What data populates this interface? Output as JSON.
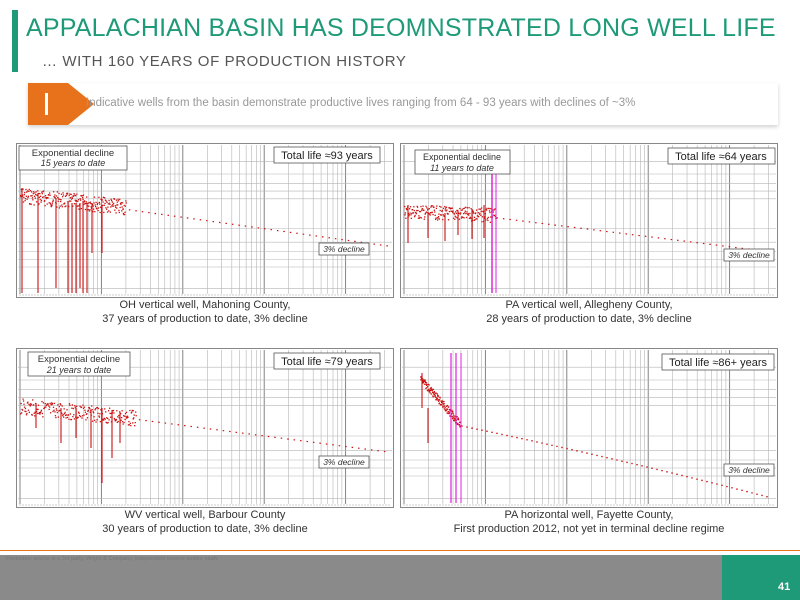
{
  "header": {
    "title": "APPALACHIAN BASIN HAS DEOMNSTRATED LONG WELL LIFE",
    "subtitle": "… WITH 160 YEARS OF PRODUCTION HISTORY"
  },
  "callout": {
    "text": "Indicative wells from the basin demonstrate productive lives ranging from 64 - 93 years with declines of ~3%"
  },
  "colors": {
    "accent_green": "#1e9a78",
    "accent_orange": "#e8711c",
    "data_red": "#cc1111",
    "marker_magenta": "#e020e0"
  },
  "chart_data": [
    {
      "type": "scatter",
      "panel": "oh",
      "exp_box": {
        "line1": "Exponential decline",
        "line2": "15 years to date"
      },
      "life_label": "Total life ≈93 years",
      "decline_label": "3% decline",
      "caption": {
        "line1": "OH vertical well, Mahoning County,",
        "line2": "37 years of production to date, 3% decline"
      }
    },
    {
      "type": "scatter",
      "panel": "pa1",
      "exp_box": {
        "line1": "Exponential decline",
        "line2": "11 years to date"
      },
      "life_label": "Total life ≈64 years",
      "decline_label": "3% decline",
      "caption": {
        "line1": "PA vertical well, Allegheny County,",
        "line2": "28 years of production to date, 3% decline"
      }
    },
    {
      "type": "scatter",
      "panel": "wv",
      "exp_box": {
        "line1": "Exponential decline",
        "line2": "21 years to date"
      },
      "life_label": "Total life ≈79 years",
      "decline_label": "3% decline",
      "caption": {
        "line1": "WV vertical well, Barbour County",
        "line2": "30 years of production to date, 3% decline"
      }
    },
    {
      "type": "scatter",
      "panel": "pa2",
      "exp_box": null,
      "life_label": "Total life ≈86+ years",
      "decline_label": "3% decline",
      "caption": {
        "line1": "PA horizontal well, Fayette County,",
        "line2": "First production 2012, not yet in terminal decline regime"
      }
    }
  ],
  "footer": {
    "footnote": "Footnotes: source is a 3rd party, Wright & Company, independent reserve auditor study",
    "page_number": "41"
  }
}
